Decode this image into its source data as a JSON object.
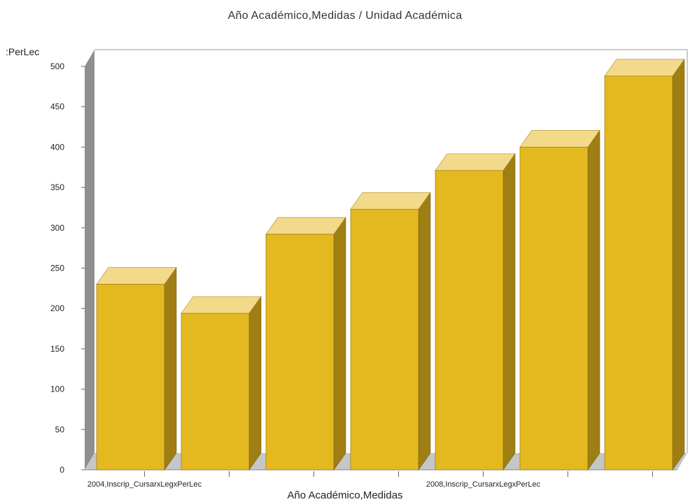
{
  "chart_data": {
    "type": "bar",
    "title": "Año Académico,Medidas / Unidad Académica",
    "xlabel": "Año Académico,Medidas",
    "ylabel": ":PerLec",
    "ylim": [
      0,
      500
    ],
    "yticks": [
      0,
      50,
      100,
      150,
      200,
      250,
      300,
      350,
      400,
      450,
      500
    ],
    "categories": [
      "2004,Inscrip_CursarxLegxPerLec",
      "",
      "",
      "",
      "2008,Inscrip_CursarxLegxPerLec",
      "",
      ""
    ],
    "values": [
      230,
      194,
      292,
      323,
      371,
      400,
      488
    ],
    "grid": false,
    "legend": "none",
    "three_d": true,
    "colors": {
      "bar_front": "#e4b920",
      "bar_top": "#f2da8a",
      "bar_side": "#9f7f14",
      "back_wall": "#8f8f8f",
      "floor": "#c6c6c6"
    }
  }
}
